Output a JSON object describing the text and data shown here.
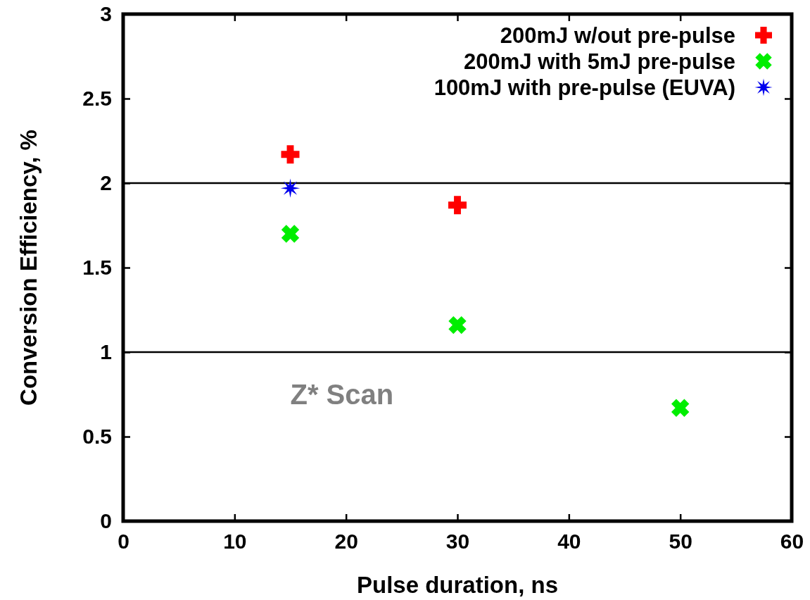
{
  "chart_data": {
    "type": "scatter",
    "xlabel": "Pulse duration, ns",
    "ylabel": "Conversion Efficiency, %",
    "xlim": [
      0,
      60
    ],
    "xticks": [
      0,
      10,
      20,
      30,
      40,
      50,
      60
    ],
    "ylim": [
      0,
      3
    ],
    "yticks": [
      0,
      0.5,
      1,
      1.5,
      2,
      2.5,
      3
    ],
    "legend": "top right",
    "grid": false,
    "ref_lines": [
      {
        "axis": "y",
        "value": 1,
        "color": "#000000"
      },
      {
        "axis": "y",
        "value": 2,
        "color": "#000000"
      }
    ],
    "annotations": [
      "Z* Scan"
    ],
    "series": [
      {
        "name": "200mJ w/out pre-pulse",
        "color": "#ff0000",
        "marker": "cross",
        "x": [
          15,
          30
        ],
        "values": [
          2.17,
          1.87
        ]
      },
      {
        "name": "200mJ with 5mJ pre-pulse",
        "color": "#00ee00",
        "marker": "cross",
        "x": [
          15,
          30,
          50
        ],
        "values": [
          1.7,
          1.16,
          0.67
        ]
      },
      {
        "name": "100mJ with pre-pulse (EUVA)",
        "color": "#0000ee",
        "marker": "star",
        "x": [
          15
        ],
        "values": [
          1.97
        ]
      }
    ]
  }
}
